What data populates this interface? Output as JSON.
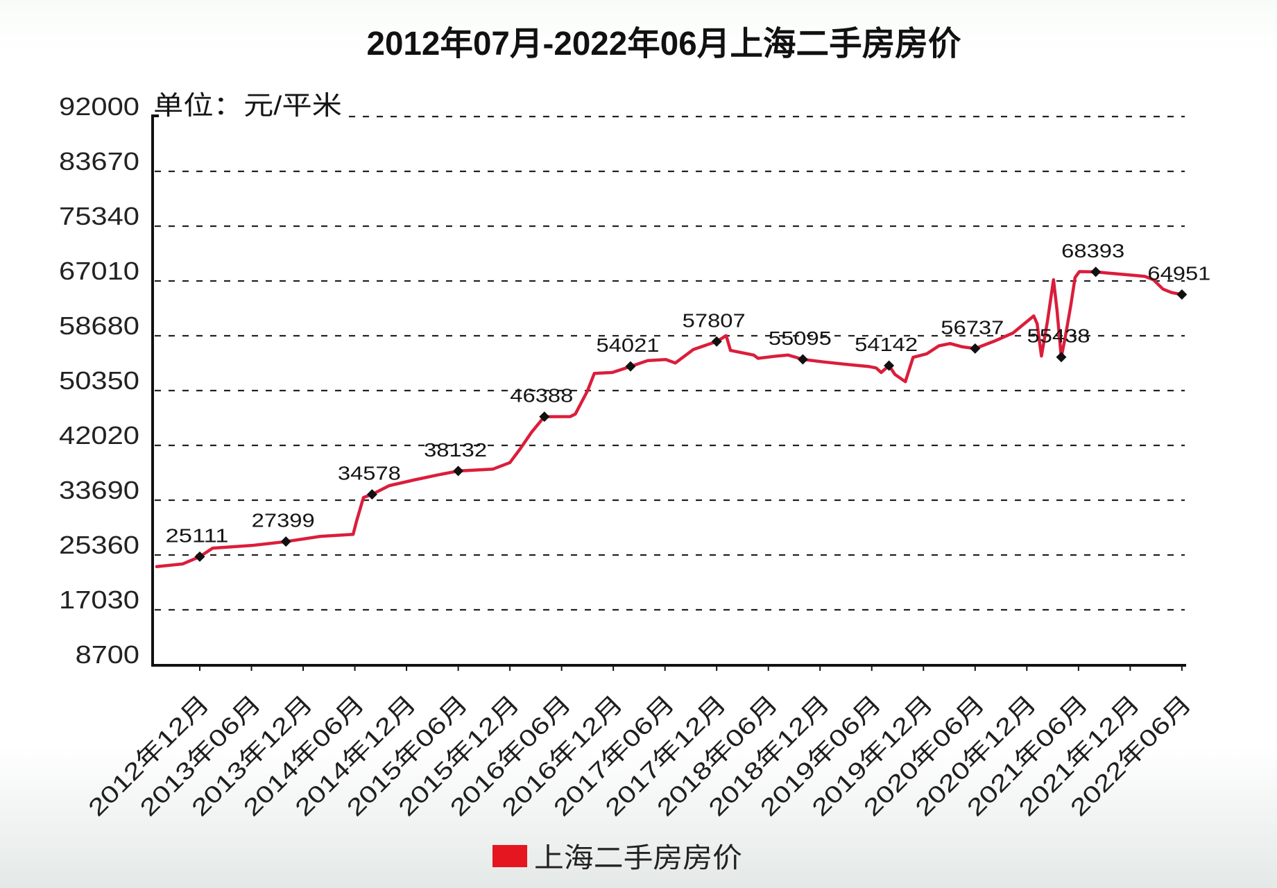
{
  "chart_data": {
    "type": "line",
    "title": "2012年07月-2022年06月上海二手房房价",
    "xlabel": "",
    "ylabel": "单位：元/平米",
    "ylim": [
      8700,
      92000
    ],
    "yticks": [
      8700,
      17030,
      25360,
      33690,
      42020,
      50350,
      58680,
      67010,
      75340,
      83670,
      92000
    ],
    "x_range": [
      "2012年07月",
      "2022年06月"
    ],
    "x_unit": "months since 2012年07月",
    "xticks": [
      {
        "x": 5,
        "label": "2012年12月"
      },
      {
        "x": 11,
        "label": "2013年06月"
      },
      {
        "x": 17,
        "label": "2013年12月"
      },
      {
        "x": 23,
        "label": "2014年06月"
      },
      {
        "x": 29,
        "label": "2014年12月"
      },
      {
        "x": 35,
        "label": "2015年06月"
      },
      {
        "x": 41,
        "label": "2015年12月"
      },
      {
        "x": 47,
        "label": "2016年06月"
      },
      {
        "x": 53,
        "label": "2016年12月"
      },
      {
        "x": 59,
        "label": "2017年06月"
      },
      {
        "x": 65,
        "label": "2017年12月"
      },
      {
        "x": 71,
        "label": "2018年06月"
      },
      {
        "x": 77,
        "label": "2018年12月"
      },
      {
        "x": 83,
        "label": "2019年06月"
      },
      {
        "x": 89,
        "label": "2019年12月"
      },
      {
        "x": 95,
        "label": "2020年06月"
      },
      {
        "x": 101,
        "label": "2020年12月"
      },
      {
        "x": 107,
        "label": "2021年06月"
      },
      {
        "x": 113,
        "label": "2021年12月"
      },
      {
        "x": 119,
        "label": "2022年06月"
      }
    ],
    "grid": {
      "y": true,
      "x": false,
      "style": "dashed"
    },
    "legend": {
      "position": "bottom",
      "entries": [
        {
          "label": "上海二手房房价",
          "color": "#e5161f"
        }
      ]
    },
    "series": [
      {
        "name": "上海二手房房价",
        "color": "#db1d3b",
        "points": [
          [
            0,
            23600
          ],
          [
            3,
            24000
          ],
          [
            5,
            25111
          ],
          [
            6.5,
            26400
          ],
          [
            11,
            26800
          ],
          [
            15,
            27399
          ],
          [
            19,
            28200
          ],
          [
            22.8,
            28500
          ],
          [
            23.2,
            30500
          ],
          [
            24,
            34100
          ],
          [
            25,
            34578
          ],
          [
            27,
            35900
          ],
          [
            30,
            36800
          ],
          [
            32.5,
            37500
          ],
          [
            35,
            38132
          ],
          [
            39,
            38400
          ],
          [
            41,
            39400
          ],
          [
            42.2,
            41500
          ],
          [
            43.5,
            44000
          ],
          [
            45,
            46388
          ],
          [
            48,
            46400
          ],
          [
            48.6,
            46800
          ],
          [
            50,
            50300
          ],
          [
            50.8,
            52950
          ],
          [
            52.9,
            53100
          ],
          [
            55,
            54021
          ],
          [
            57,
            54900
          ],
          [
            59.1,
            55060
          ],
          [
            60.2,
            54550
          ],
          [
            62.3,
            56600
          ],
          [
            65,
            57807
          ],
          [
            66.1,
            58700
          ],
          [
            66.6,
            56450
          ],
          [
            69.3,
            55750
          ],
          [
            69.8,
            55250
          ],
          [
            72,
            55600
          ],
          [
            73.3,
            55750
          ],
          [
            75,
            55095
          ],
          [
            77.4,
            54700
          ],
          [
            80,
            54350
          ],
          [
            82.7,
            54000
          ],
          [
            83.5,
            53800
          ],
          [
            84.1,
            53100
          ],
          [
            85,
            54142
          ],
          [
            85.7,
            52800
          ],
          [
            86.9,
            51700
          ],
          [
            87.8,
            55400
          ],
          [
            89.4,
            55950
          ],
          [
            90.8,
            57150
          ],
          [
            92.1,
            57500
          ],
          [
            93.5,
            57000
          ],
          [
            95,
            56737
          ],
          [
            97.2,
            57850
          ],
          [
            99.4,
            59100
          ],
          [
            101.8,
            61700
          ],
          [
            102.2,
            60500
          ],
          [
            102.7,
            55600
          ],
          [
            103.4,
            60900
          ],
          [
            104.1,
            67200
          ],
          [
            104.5,
            62600
          ],
          [
            105,
            55438
          ],
          [
            105.4,
            58050
          ],
          [
            106.1,
            63300
          ],
          [
            106.6,
            67550
          ],
          [
            107.1,
            68430
          ],
          [
            109,
            68393
          ],
          [
            110.1,
            68240
          ],
          [
            113.3,
            67890
          ],
          [
            114.7,
            67710
          ],
          [
            115.7,
            67190
          ],
          [
            116.8,
            65780
          ],
          [
            117.8,
            65250
          ],
          [
            119,
            64951
          ]
        ]
      }
    ],
    "data_labels": [
      {
        "x": 5,
        "value": 25111
      },
      {
        "x": 15,
        "value": 27399
      },
      {
        "x": 25,
        "value": 34578
      },
      {
        "x": 35,
        "value": 38132
      },
      {
        "x": 45,
        "value": 46388
      },
      {
        "x": 55,
        "value": 54021
      },
      {
        "x": 65,
        "value": 57807
      },
      {
        "x": 75,
        "value": 55095
      },
      {
        "x": 85,
        "value": 54142
      },
      {
        "x": 95,
        "value": 56737
      },
      {
        "x": 105,
        "value": 55438
      },
      {
        "x": 109,
        "value": 68393
      },
      {
        "x": 119,
        "value": 64951
      }
    ]
  }
}
